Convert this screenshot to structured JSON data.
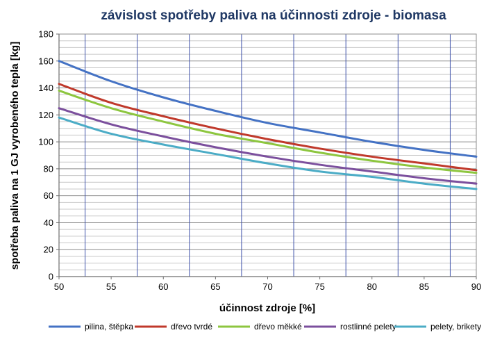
{
  "chart_data": {
    "type": "line",
    "title": "závislost spotřeby paliva na účinnosti zdroje - biomasa",
    "xlabel": "účinnost zdroje [%]",
    "ylabel": "spotřeba paliva na 1 GJ vyrobeného tepla [kg]",
    "xlim": [
      50,
      90
    ],
    "ylim": [
      0,
      180
    ],
    "x_ticks": [
      "50",
      "55",
      "60",
      "65",
      "70",
      "75",
      "80",
      "85",
      "90"
    ],
    "y_ticks": [
      "0",
      "20",
      "40",
      "60",
      "80",
      "100",
      "120",
      "140",
      "160",
      "180"
    ],
    "grid": true,
    "legend_position": "bottom",
    "x": [
      50,
      55,
      60,
      65,
      70,
      75,
      80,
      85,
      90
    ],
    "series": [
      {
        "name": "pilina, štěpka",
        "color": "#4472c4",
        "values": [
          160,
          145,
          133,
          123,
          114,
          107,
          100,
          94,
          89
        ]
      },
      {
        "name": "dřevo tvrdé",
        "color": "#c0392b",
        "values": [
          143,
          129,
          119,
          110,
          102,
          95,
          89,
          84,
          79
        ]
      },
      {
        "name": "dřevo měkké",
        "color": "#8dc63f",
        "values": [
          138,
          125,
          115,
          106,
          99,
          92,
          86,
          81,
          77
        ]
      },
      {
        "name": "rostlinné pelety",
        "color": "#7b4f9d",
        "values": [
          125,
          113,
          104,
          96,
          89,
          83,
          78,
          73,
          69
        ]
      },
      {
        "name": "pelety, brikety",
        "color": "#4bacc6",
        "values": [
          118,
          106,
          98,
          91,
          84,
          78,
          74,
          69,
          65
        ]
      }
    ]
  }
}
